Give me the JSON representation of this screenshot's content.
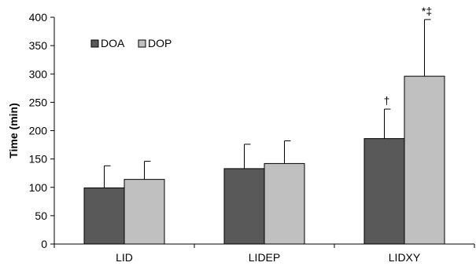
{
  "chart_data": {
    "type": "bar",
    "categories": [
      "LID",
      "LIDEP",
      "LIDXY"
    ],
    "series": [
      {
        "name": "DOA",
        "color": "#595959",
        "values": [
          99,
          133,
          186
        ],
        "errors": [
          39,
          43,
          52
        ]
      },
      {
        "name": "DOP",
        "color": "#c0c0c0",
        "values": [
          114,
          142,
          296
        ],
        "errors": [
          32,
          40,
          100
        ]
      }
    ],
    "annotations": [
      {
        "series": "DOA",
        "category": "LIDXY",
        "text": "†"
      },
      {
        "series": "DOP",
        "category": "LIDXY",
        "text": "*‡"
      }
    ],
    "xlabel": "",
    "ylabel": "Time (min)",
    "ylim": [
      0,
      400
    ],
    "yticks": [
      0,
      50,
      100,
      150,
      200,
      250,
      300,
      350,
      400
    ],
    "grid": false,
    "legend_position": "top-left"
  }
}
